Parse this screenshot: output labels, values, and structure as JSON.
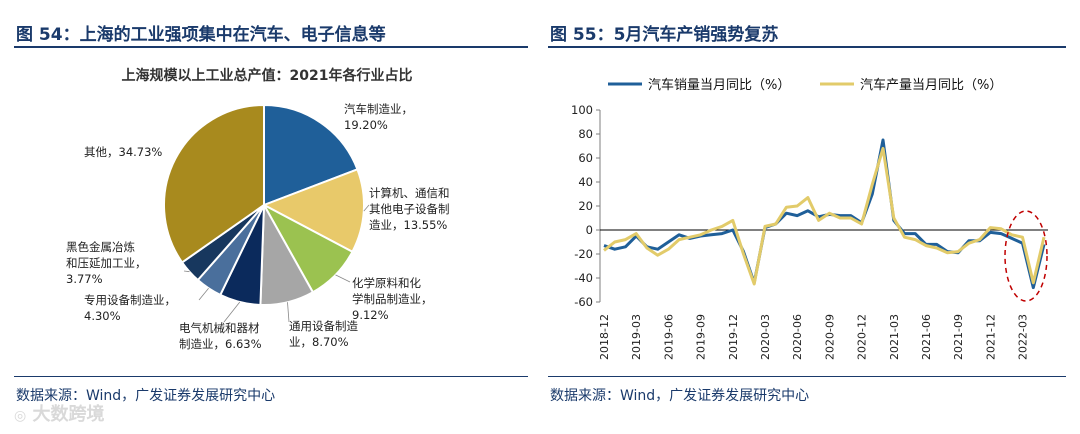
{
  "left_figure": {
    "heading": "图 54：上海的工业强项集中在汽车、电子信息等",
    "source": "数据来源：Wind，广发证券发展研究中心"
  },
  "right_figure": {
    "heading": "图 55：5月汽车产销强势复苏",
    "source": "数据来源：Wind，广发证券发展研究中心"
  },
  "watermark": "大数跨境",
  "chart_data": [
    {
      "type": "pie",
      "title": "上海规模以上工业总产值：2021年各行业占比",
      "slices": [
        {
          "name": "汽车制造业",
          "value": 19.2,
          "color": "#1f5f99",
          "label": [
            "汽车制造业，",
            "19.20%"
          ]
        },
        {
          "name": "计算机、通信和其他电子设备制造业",
          "value": 13.55,
          "color": "#e8c96a",
          "label": [
            "计算机、通信和",
            "其他电子设备制",
            "造业，13.55%"
          ]
        },
        {
          "name": "化学原料和化学制品制造业",
          "value": 9.12,
          "color": "#9bc250",
          "label": [
            "化学原料和化",
            "学制品制造业，",
            "9.12%"
          ]
        },
        {
          "name": "通用设备制造业",
          "value": 8.7,
          "color": "#a6a6a6",
          "label": [
            "通用设备制造",
            "业，8.70%"
          ]
        },
        {
          "name": "电气机械和器材制造业",
          "value": 6.63,
          "color": "#0b2a5c",
          "label": [
            "电气机械和器材",
            "制造业，6.63%"
          ]
        },
        {
          "name": "专用设备制造业",
          "value": 4.3,
          "color": "#4a6f9c",
          "label": [
            "专用设备制造业，",
            "4.30%"
          ]
        },
        {
          "name": "黑色金属冶炼和压延加工业",
          "value": 3.77,
          "color": "#17375e",
          "label": [
            "黑色金属冶炼",
            "和压延加工业，",
            "3.77%"
          ]
        },
        {
          "name": "其他",
          "value": 34.73,
          "color": "#a88a1e",
          "label": [
            "其他，34.73%"
          ]
        }
      ]
    },
    {
      "type": "line",
      "title": "",
      "legend": "top",
      "ylim": [
        -60,
        100
      ],
      "yticks": [
        -60,
        -40,
        -20,
        0,
        20,
        40,
        60,
        80,
        100
      ],
      "x_labels": [
        "2018-12",
        "2019-03",
        "2019-06",
        "2019-09",
        "2019-12",
        "2020-03",
        "2020-06",
        "2020-09",
        "2020-12",
        "2021-03",
        "2021-06",
        "2021-09",
        "2021-12",
        "2022-03"
      ],
      "x": [
        "2018-12",
        "2019-01",
        "2019-02",
        "2019-03",
        "2019-04",
        "2019-05",
        "2019-06",
        "2019-07",
        "2019-08",
        "2019-09",
        "2019-10",
        "2019-11",
        "2019-12",
        "2020-01",
        "2020-02",
        "2020-03",
        "2020-04",
        "2020-05",
        "2020-06",
        "2020-07",
        "2020-08",
        "2020-09",
        "2020-10",
        "2020-11",
        "2020-12",
        "2021-01",
        "2021-02",
        "2021-03",
        "2021-04",
        "2021-05",
        "2021-06",
        "2021-07",
        "2021-08",
        "2021-09",
        "2021-10",
        "2021-11",
        "2021-12",
        "2022-01",
        "2022-02",
        "2022-03",
        "2022-04",
        "2022-05"
      ],
      "series": [
        {
          "name": "汽车销量当月同比（%）",
          "color": "#1f5f99",
          "values": [
            -13,
            -16,
            -14,
            -5,
            -14,
            -16,
            -10,
            -4,
            -7,
            -5,
            -4,
            -3,
            0,
            -18,
            -44,
            2,
            5,
            14,
            12,
            16,
            11,
            13,
            12,
            12,
            6,
            30,
            75,
            8,
            -3,
            -3,
            -12,
            -12,
            -18,
            -19,
            -9,
            -9,
            -2,
            -3,
            -7,
            -11,
            -48,
            -12
          ]
        },
        {
          "name": "汽车产量当月同比（%）",
          "color": "#e2cb6a",
          "values": [
            -17,
            -10,
            -8,
            -3,
            -15,
            -21,
            -16,
            -8,
            -6,
            -4,
            0,
            3,
            8,
            -20,
            -45,
            3,
            5,
            19,
            20,
            27,
            8,
            14,
            10,
            10,
            5,
            38,
            68,
            10,
            -6,
            -8,
            -13,
            -15,
            -19,
            -18,
            -11,
            -8,
            2,
            1,
            -4,
            -6,
            -44,
            -6
          ]
        }
      ]
    }
  ]
}
